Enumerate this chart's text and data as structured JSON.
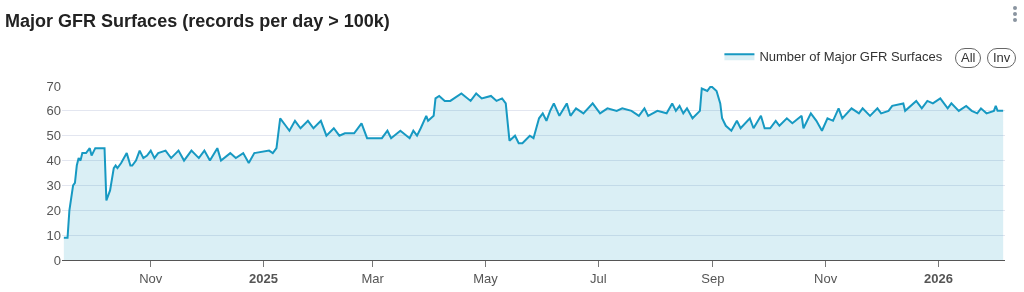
{
  "chart_data": {
    "type": "area",
    "title": "Major GFR Surfaces (records per day > 100k)",
    "annotations": [
      "All",
      "Inv"
    ],
    "legend": "top right",
    "grid": "y",
    "xlim": [
      "2024-09-14",
      "2026-02-06"
    ],
    "xticks": [
      {
        "value": "2024-11-01",
        "label": "Nov"
      },
      {
        "value": "2025-01-01",
        "label": "2025"
      },
      {
        "value": "2025-03-01",
        "label": "Mar"
      },
      {
        "value": "2025-05-01",
        "label": "May"
      },
      {
        "value": "2025-07-01",
        "label": "Jul"
      },
      {
        "value": "2025-09-01",
        "label": "Sep"
      },
      {
        "value": "2025-11-01",
        "label": "Nov"
      },
      {
        "value": "2026-01-01",
        "label": "2026"
      }
    ],
    "ylim": [
      0,
      70
    ],
    "yticks": [
      0,
      10,
      20,
      30,
      40,
      50,
      60,
      70
    ],
    "series": [
      {
        "name": "Number of Major GFR Surfaces",
        "color": "#1799c2",
        "x": [
          "2024-09-15",
          "2024-09-17",
          "2024-09-18",
          "2024-09-20",
          "2024-09-21",
          "2024-09-22",
          "2024-09-23",
          "2024-09-24",
          "2024-09-25",
          "2024-09-27",
          "2024-09-29",
          "2024-09-30",
          "2024-10-02",
          "2024-10-07",
          "2024-10-08",
          "2024-10-10",
          "2024-10-12",
          "2024-10-13",
          "2024-10-14",
          "2024-10-16",
          "2024-10-19",
          "2024-10-21",
          "2024-10-22",
          "2024-10-24",
          "2024-10-26",
          "2024-10-28",
          "2024-10-30",
          "2024-11-01",
          "2024-11-03",
          "2024-11-05",
          "2024-11-09",
          "2024-11-12",
          "2024-11-16",
          "2024-11-19",
          "2024-11-23",
          "2024-11-27",
          "2024-11-30",
          "2024-12-03",
          "2024-12-07",
          "2024-12-09",
          "2024-12-14",
          "2024-12-17",
          "2024-12-21",
          "2024-12-24",
          "2024-12-27",
          "2025-01-04",
          "2025-01-06",
          "2025-01-08",
          "2025-01-10",
          "2025-01-13",
          "2025-01-15",
          "2025-01-18",
          "2025-01-21",
          "2025-01-25",
          "2025-01-28",
          "2025-02-01",
          "2025-02-04",
          "2025-02-08",
          "2025-02-11",
          "2025-02-14",
          "2025-02-19",
          "2025-02-23",
          "2025-02-26",
          "2025-03-06",
          "2025-03-09",
          "2025-03-11",
          "2025-03-16",
          "2025-03-21",
          "2025-03-23",
          "2025-03-25",
          "2025-03-27",
          "2025-03-30",
          "2025-03-31",
          "2025-04-03",
          "2025-04-04",
          "2025-04-06",
          "2025-04-09",
          "2025-04-12",
          "2025-04-18",
          "2025-04-23",
          "2025-04-26",
          "2025-04-29",
          "2025-05-04",
          "2025-05-07",
          "2025-05-10",
          "2025-05-12",
          "2025-05-14",
          "2025-05-17",
          "2025-05-19",
          "2025-05-21",
          "2025-05-25",
          "2025-05-27",
          "2025-05-30",
          "2025-06-01",
          "2025-06-03",
          "2025-06-05",
          "2025-06-07",
          "2025-06-10",
          "2025-06-14",
          "2025-06-16",
          "2025-06-19",
          "2025-06-23",
          "2025-06-28",
          "2025-07-02",
          "2025-07-06",
          "2025-07-11",
          "2025-07-14",
          "2025-07-19",
          "2025-07-23",
          "2025-07-26",
          "2025-07-28",
          "2025-08-02",
          "2025-08-07",
          "2025-08-10",
          "2025-08-12",
          "2025-08-14",
          "2025-08-16",
          "2025-08-18",
          "2025-08-21",
          "2025-08-25",
          "2025-08-26",
          "2025-08-29",
          "2025-08-31",
          "2025-09-03",
          "2025-09-05",
          "2025-09-06",
          "2025-09-08",
          "2025-09-11",
          "2025-09-14",
          "2025-09-16",
          "2025-09-21",
          "2025-09-23",
          "2025-09-27",
          "2025-09-29",
          "2025-10-02",
          "2025-10-05",
          "2025-10-07",
          "2025-10-11",
          "2025-10-14",
          "2025-10-19",
          "2025-10-20",
          "2025-10-24",
          "2025-10-27",
          "2025-10-30",
          "2025-11-02",
          "2025-11-05",
          "2025-11-08",
          "2025-11-10",
          "2025-11-15",
          "2025-11-19",
          "2025-11-21",
          "2025-11-25",
          "2025-11-29",
          "2025-12-01",
          "2025-12-05",
          "2025-12-07",
          "2025-12-13",
          "2025-12-14",
          "2025-12-20",
          "2025-12-23",
          "2025-12-26",
          "2025-12-29",
          "2026-01-02",
          "2026-01-06",
          "2026-01-08",
          "2026-01-12",
          "2026-01-16",
          "2026-01-19",
          "2026-01-22",
          "2026-01-24",
          "2026-01-27",
          "2026-01-31",
          "2026-02-01",
          "2026-02-02",
          "2026-02-05"
        ],
        "values": [
          9,
          9,
          20,
          30,
          31,
          38,
          41,
          40,
          43,
          43,
          45,
          42,
          45,
          45,
          24,
          28,
          37,
          38,
          37,
          39,
          43,
          38,
          38,
          40,
          44,
          41,
          42,
          44,
          41,
          43,
          44,
          41,
          44,
          40,
          44,
          41,
          44,
          40,
          45,
          40,
          43,
          41,
          43,
          39,
          43,
          44,
          43,
          45,
          57,
          54,
          52,
          56,
          53,
          56,
          53,
          56,
          50,
          53,
          50,
          51,
          51,
          55,
          49,
          49,
          52,
          49,
          52,
          49,
          52,
          50,
          53,
          58,
          56,
          58,
          65,
          66,
          64,
          64,
          67,
          64,
          67,
          65,
          66,
          64,
          65,
          63,
          48,
          50,
          47,
          47,
          50,
          49,
          57,
          59,
          56,
          60,
          63,
          58,
          63,
          58,
          61,
          59,
          63,
          59,
          61,
          60,
          61,
          60,
          58,
          61,
          58,
          60,
          59,
          63,
          60,
          62,
          59,
          61,
          57,
          60,
          69,
          68,
          70,
          68,
          63,
          57,
          54,
          52,
          56,
          53,
          57,
          53,
          58,
          53,
          53,
          56,
          54,
          57,
          55,
          58,
          53,
          59,
          56,
          52,
          57,
          56,
          61,
          57,
          61,
          59,
          61,
          58,
          61,
          59,
          60,
          62,
          63,
          60,
          64,
          61,
          64,
          63,
          65,
          61,
          63,
          60,
          62,
          60,
          59,
          61,
          59,
          60,
          62,
          60,
          60
        ]
      }
    ]
  }
}
